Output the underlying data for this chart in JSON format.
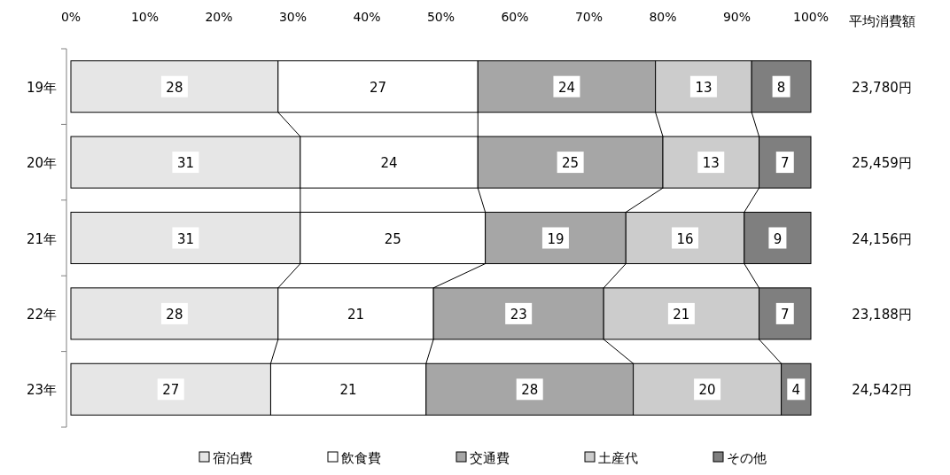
{
  "chart_data": {
    "type": "bar",
    "orientation": "horizontal",
    "stacked": true,
    "data_labels": true,
    "legend": "bottom",
    "categories": [
      "19年",
      "20年",
      "21年",
      "22年",
      "23年"
    ],
    "xlim": [
      0,
      100
    ],
    "xticks": [
      {
        "value": 0,
        "label": "0%"
      },
      {
        "value": 10,
        "label": "10%"
      },
      {
        "value": 20,
        "label": "20%"
      },
      {
        "value": 30,
        "label": "30%"
      },
      {
        "value": 40,
        "label": "40%"
      },
      {
        "value": 50,
        "label": "50%"
      },
      {
        "value": 60,
        "label": "60%"
      },
      {
        "value": 70,
        "label": "70%"
      },
      {
        "value": 80,
        "label": "80%"
      },
      {
        "value": 90,
        "label": "90%"
      },
      {
        "value": 100,
        "label": "100%"
      }
    ],
    "series": [
      {
        "name": "宿泊費",
        "color": "#e6e6e6",
        "values": [
          28,
          31,
          31,
          28,
          27
        ]
      },
      {
        "name": "飲食費",
        "color": "#ffffff",
        "values": [
          27,
          24,
          25,
          21,
          21
        ]
      },
      {
        "name": "交通費",
        "color": "#a6a6a6",
        "values": [
          24,
          25,
          19,
          23,
          28
        ]
      },
      {
        "name": "土産代",
        "color": "#cccccc",
        "values": [
          13,
          13,
          16,
          21,
          20
        ]
      },
      {
        "name": "その他",
        "color": "#7f7f7f",
        "values": [
          8,
          7,
          9,
          7,
          4
        ]
      }
    ],
    "annotations": [
      "平均消費額",
      "23,780円",
      "25,459円",
      "24,156円",
      "23,188円",
      "24,542円"
    ]
  }
}
